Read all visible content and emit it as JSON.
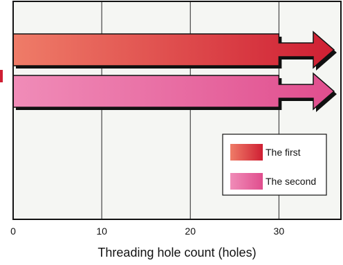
{
  "chart_data": {
    "type": "bar",
    "orientation": "horizontal",
    "title": "",
    "xlabel": "Threading hole count (holes)",
    "ylabel": "",
    "xlim": [
      0,
      37
    ],
    "xticks": [
      0,
      10,
      20,
      30
    ],
    "grid": true,
    "legend_position": "bottom-right",
    "continues_beyond_axis": true,
    "series": [
      {
        "name": "The first",
        "value": 37,
        "color_start": "#ef7c68",
        "color_end": "#cf1f33"
      },
      {
        "name": "The second",
        "value": 37,
        "color_start": "#f08cb8",
        "color_end": "#e04e8e"
      }
    ],
    "plot_background": "#f5f6f3",
    "grid_color": "#222222"
  }
}
